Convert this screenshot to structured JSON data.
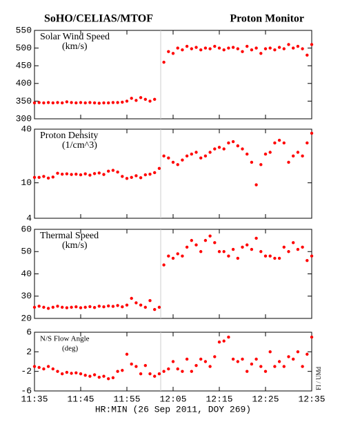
{
  "chart_data": {
    "type": "scatter",
    "title": "SoHO/CELIAS/MTOF",
    "subtitle": "Proton Monitor",
    "xlabel": "HR:MIN (26 Sep 2011, DOY 269)",
    "credit": "FI / UMd",
    "color": "#ff0000",
    "x": [
      "11:35",
      "11:36",
      "11:37",
      "11:38",
      "11:39",
      "11:40",
      "11:41",
      "11:42",
      "11:43",
      "11:44",
      "11:45",
      "11:46",
      "11:47",
      "11:48",
      "11:49",
      "11:50",
      "11:51",
      "11:52",
      "11:53",
      "11:54",
      "11:55",
      "11:56",
      "11:57",
      "11:58",
      "11:59",
      "12:00",
      "12:01",
      "12:02",
      "12:03",
      "12:04",
      "12:05",
      "12:06",
      "12:07",
      "12:08",
      "12:09",
      "12:10",
      "12:11",
      "12:12",
      "12:13",
      "12:14",
      "12:15",
      "12:16",
      "12:17",
      "12:18",
      "12:19",
      "12:20",
      "12:21",
      "12:22",
      "12:23",
      "12:24",
      "12:25",
      "12:26",
      "12:27",
      "12:28",
      "12:29",
      "12:30",
      "12:31",
      "12:32",
      "12:33",
      "12:34",
      "12:35"
    ],
    "xticks": [
      "11:35",
      "11:45",
      "11:55",
      "12:05",
      "12:15",
      "12:25",
      "12:35"
    ],
    "panels": [
      {
        "title": [
          "Solar Wind Speed",
          "(km/s)"
        ],
        "ylim": [
          300,
          550
        ],
        "yticks": [
          300,
          350,
          400,
          450,
          500,
          550
        ],
        "log": false,
        "values": [
          345,
          346,
          345,
          346,
          345,
          346,
          345,
          348,
          346,
          345,
          346,
          345,
          346,
          345,
          344,
          345,
          345,
          346,
          346,
          347,
          350,
          358,
          352,
          360,
          355,
          350,
          355,
          null,
          460,
          490,
          485,
          500,
          495,
          505,
          498,
          502,
          495,
          500,
          498,
          505,
          500,
          495,
          500,
          502,
          498,
          490,
          505,
          495,
          500,
          485,
          498,
          500,
          495,
          502,
          498,
          510,
          500,
          505,
          498,
          480,
          510
        ]
      },
      {
        "title": [
          "Proton Density",
          "(1/cm^3)"
        ],
        "ylim": [
          4,
          40
        ],
        "yticks": [
          4,
          10,
          40
        ],
        "log": true,
        "values": [
          11.5,
          11.5,
          11.8,
          11.3,
          11.6,
          12.8,
          12.5,
          12.6,
          12.4,
          12.5,
          12.3,
          12.6,
          12.2,
          12.7,
          12.9,
          12.4,
          13.5,
          13.8,
          13.2,
          11.8,
          11.2,
          11.5,
          12,
          11.4,
          12.3,
          12.5,
          13,
          14.5,
          20,
          19,
          17,
          16,
          18,
          20,
          21,
          22,
          19,
          20,
          22,
          24,
          25,
          24,
          28,
          29,
          26,
          24,
          21,
          17,
          9.5,
          16,
          21,
          22,
          28,
          30,
          28,
          17,
          20,
          22,
          20,
          28,
          36
        ]
      },
      {
        "title": [
          "Thermal Speed",
          "(km/s)"
        ],
        "ylim": [
          20,
          60
        ],
        "yticks": [
          20,
          30,
          40,
          50,
          60
        ],
        "log": false,
        "values": [
          25,
          25.5,
          25,
          24.5,
          25,
          25.5,
          25,
          24.8,
          25,
          25.2,
          24.8,
          25,
          25.3,
          24.9,
          25.5,
          25.2,
          25.6,
          25.4,
          25.8,
          25.2,
          26,
          29,
          27,
          26,
          25,
          28,
          24,
          25,
          44,
          48,
          47,
          49,
          48,
          52,
          55,
          53,
          50,
          55,
          57,
          54,
          50,
          50,
          48,
          51,
          47,
          52,
          53,
          51,
          56,
          50,
          48,
          48,
          47,
          47,
          52,
          50,
          54,
          51,
          52,
          46,
          48
        ]
      },
      {
        "title": [
          "N/S Flow Angle",
          "(deg)"
        ],
        "ylim": [
          -6,
          6
        ],
        "yticks": [
          -6,
          -2,
          2,
          6
        ],
        "log": false,
        "values": [
          -1,
          -1.2,
          -1.5,
          -1,
          -1.5,
          -2,
          -2.5,
          -2.2,
          -2.4,
          -2.3,
          -2.5,
          -2.8,
          -3,
          -2.7,
          -3.2,
          -3,
          -3.5,
          -3.3,
          -2,
          -1.8,
          1.5,
          -0.5,
          -1,
          -2.5,
          -0.8,
          -2.5,
          -3,
          -2.5,
          -2,
          -1.5,
          0,
          -1.5,
          -2,
          0.5,
          -2,
          -0.8,
          0.5,
          0,
          -1,
          1,
          4,
          4.2,
          5,
          0.5,
          0,
          0.5,
          -2,
          -0.5,
          0.5,
          -1,
          -2,
          2,
          -1,
          0,
          -1,
          1,
          0.5,
          2,
          -1,
          1.5,
          5
        ]
      }
    ]
  }
}
